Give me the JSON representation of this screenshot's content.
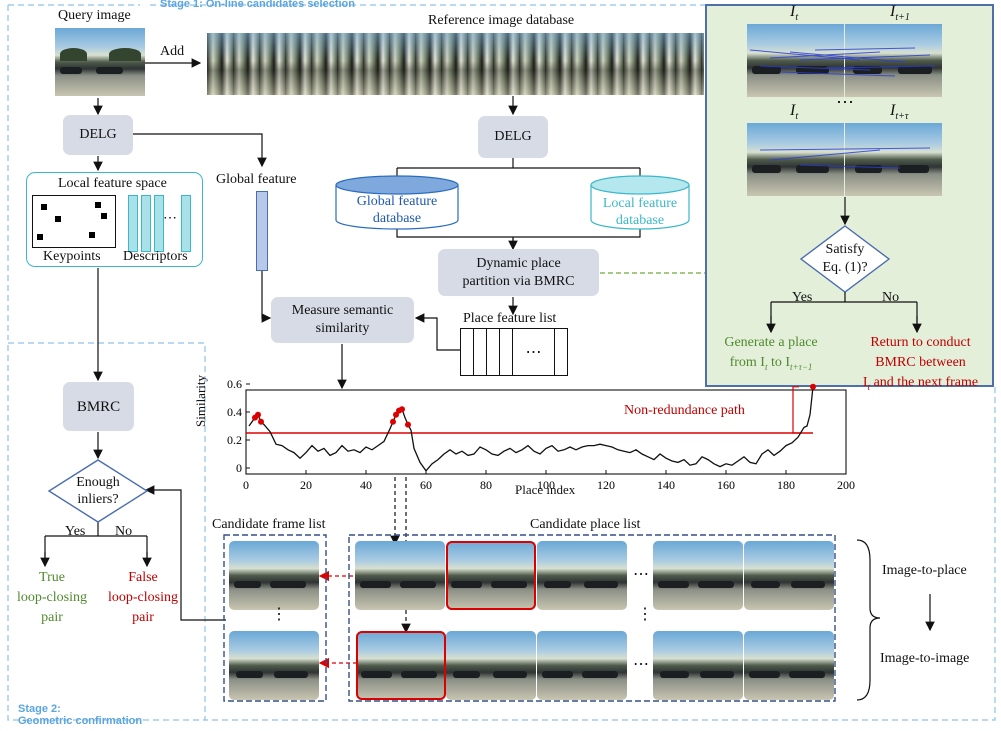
{
  "stage1": {
    "label": "Stage 1: On-line candidates selection"
  },
  "stage2": {
    "line1": "Stage 2:",
    "line2": "Geometric confirmation"
  },
  "query": {
    "title": "Query image",
    "add_label": "Add"
  },
  "reference": {
    "title": "Reference image database"
  },
  "delg_left": "DELG",
  "delg_right": "DELG",
  "local_space": {
    "title": "Local feature space",
    "keypoints": "Keypoints",
    "descriptors": "Descriptors",
    "dots": "⋯"
  },
  "global_feature": "Global feature",
  "global_db": {
    "line1": "Global feature",
    "line2": "database"
  },
  "local_db": {
    "line1": "Local feature",
    "line2": "database"
  },
  "dynamic": {
    "line1": "Dynamic place",
    "line2": "partition via BMRC"
  },
  "measure": {
    "line1": "Measure semantic",
    "line2": "similarity"
  },
  "place_list": {
    "title": "Place feature list",
    "dots": "⋯"
  },
  "bmrc_left": "BMRC",
  "inliers": {
    "line1": "Enough",
    "line2": "inliers?",
    "yes": "Yes",
    "no": "No"
  },
  "true_pair": {
    "line1": "True",
    "line2": "loop-closing",
    "line3": "pair"
  },
  "false_pair": {
    "line1": "False",
    "line2": "loop-closing",
    "line3": "pair"
  },
  "panel": {
    "it_a": "I",
    "it_a_sub": "t",
    "it1": "I",
    "it1_sub": "t+1",
    "it_b": "I",
    "it_b_sub": "t",
    "itt": "I",
    "itt_sub": "t+τ",
    "vdots": "⋯",
    "satisfy": {
      "line1": "Satisfy",
      "line2": "Eq. (1)?"
    },
    "yes": "Yes",
    "no": "No",
    "generate": {
      "line1": "Generate a place",
      "line2": "from I",
      "sub1": "t",
      "mid": " to I",
      "sub2": "t+τ−1"
    },
    "return": {
      "line1": "Return to conduct",
      "line2": "BMRC between",
      "line3": "I",
      "sub": "t",
      "tail": " and the next frame"
    }
  },
  "chart_data": {
    "type": "line",
    "title": "",
    "xlabel": "Place index",
    "ylabel": "Similarity",
    "xlim": [
      0,
      200
    ],
    "ylim": [
      0,
      0.6
    ],
    "xticks": [
      0,
      20,
      40,
      60,
      80,
      100,
      120,
      140,
      160,
      180,
      200
    ],
    "yticks": [
      0,
      0.2,
      0.4,
      0.6
    ],
    "ytick_labels": [
      "0",
      "0.2",
      "0.4",
      "0.6"
    ],
    "threshold": 0.25,
    "annotation": "Non-redundance path",
    "series": [
      {
        "name": "similarity",
        "x": [
          1,
          3,
          4,
          5,
          6,
          8,
          10,
          12,
          14,
          16,
          18,
          20,
          22,
          24,
          26,
          28,
          30,
          32,
          34,
          36,
          38,
          40,
          42,
          44,
          46,
          48,
          49,
          50,
          51,
          52,
          53,
          54,
          55,
          56,
          58,
          60,
          62,
          64,
          66,
          68,
          70,
          72,
          74,
          76,
          78,
          80,
          82,
          84,
          86,
          88,
          90,
          92,
          94,
          96,
          98,
          100,
          102,
          104,
          106,
          108,
          110,
          112,
          114,
          116,
          118,
          120,
          122,
          124,
          126,
          128,
          130,
          132,
          134,
          136,
          138,
          140,
          142,
          144,
          146,
          148,
          150,
          152,
          154,
          156,
          158,
          160,
          162,
          164,
          166,
          168,
          170,
          172,
          174,
          176,
          178,
          180,
          182,
          184,
          186,
          187,
          188,
          189
        ],
        "y": [
          0.3,
          0.36,
          0.38,
          0.33,
          0.31,
          0.26,
          0.17,
          0.16,
          0.13,
          0.11,
          0.07,
          0.11,
          0.16,
          0.12,
          0.14,
          0.09,
          0.11,
          0.16,
          0.12,
          0.13,
          0.11,
          0.15,
          0.13,
          0.16,
          0.19,
          0.28,
          0.33,
          0.38,
          0.41,
          0.42,
          0.36,
          0.31,
          0.27,
          0.14,
          0.04,
          -0.02,
          0.03,
          0.06,
          0.1,
          0.13,
          0.1,
          0.12,
          0.09,
          0.1,
          0.15,
          0.13,
          0.1,
          0.09,
          0.12,
          0.14,
          0.11,
          0.13,
          0.16,
          0.12,
          0.1,
          0.14,
          0.16,
          0.12,
          0.13,
          0.15,
          0.13,
          0.15,
          0.16,
          0.16,
          0.17,
          0.16,
          0.15,
          0.13,
          0.12,
          0.11,
          0.13,
          0.1,
          0.08,
          0.06,
          0.1,
          0.07,
          0.05,
          0.04,
          0.06,
          0.02,
          0.03,
          0.08,
          0.06,
          0.03,
          0.01,
          0.03,
          0.02,
          0.05,
          0.08,
          0.04,
          0.03,
          0.1,
          0.13,
          0.09,
          0.12,
          0.16,
          0.18,
          0.22,
          0.29,
          0.3,
          0.38,
          0.58
        ]
      }
    ],
    "highlights_x": [
      3,
      4,
      5,
      49,
      50,
      51,
      52,
      54,
      189
    ]
  },
  "candidate_frame": {
    "title": "Candidate frame list",
    "vdots": "⋮"
  },
  "candidate_place": {
    "title": "Candidate place list",
    "dots": "⋯",
    "vdots": "⋮"
  },
  "image_to_place": "Image-to-place",
  "image_to_image": "Image-to-image"
}
